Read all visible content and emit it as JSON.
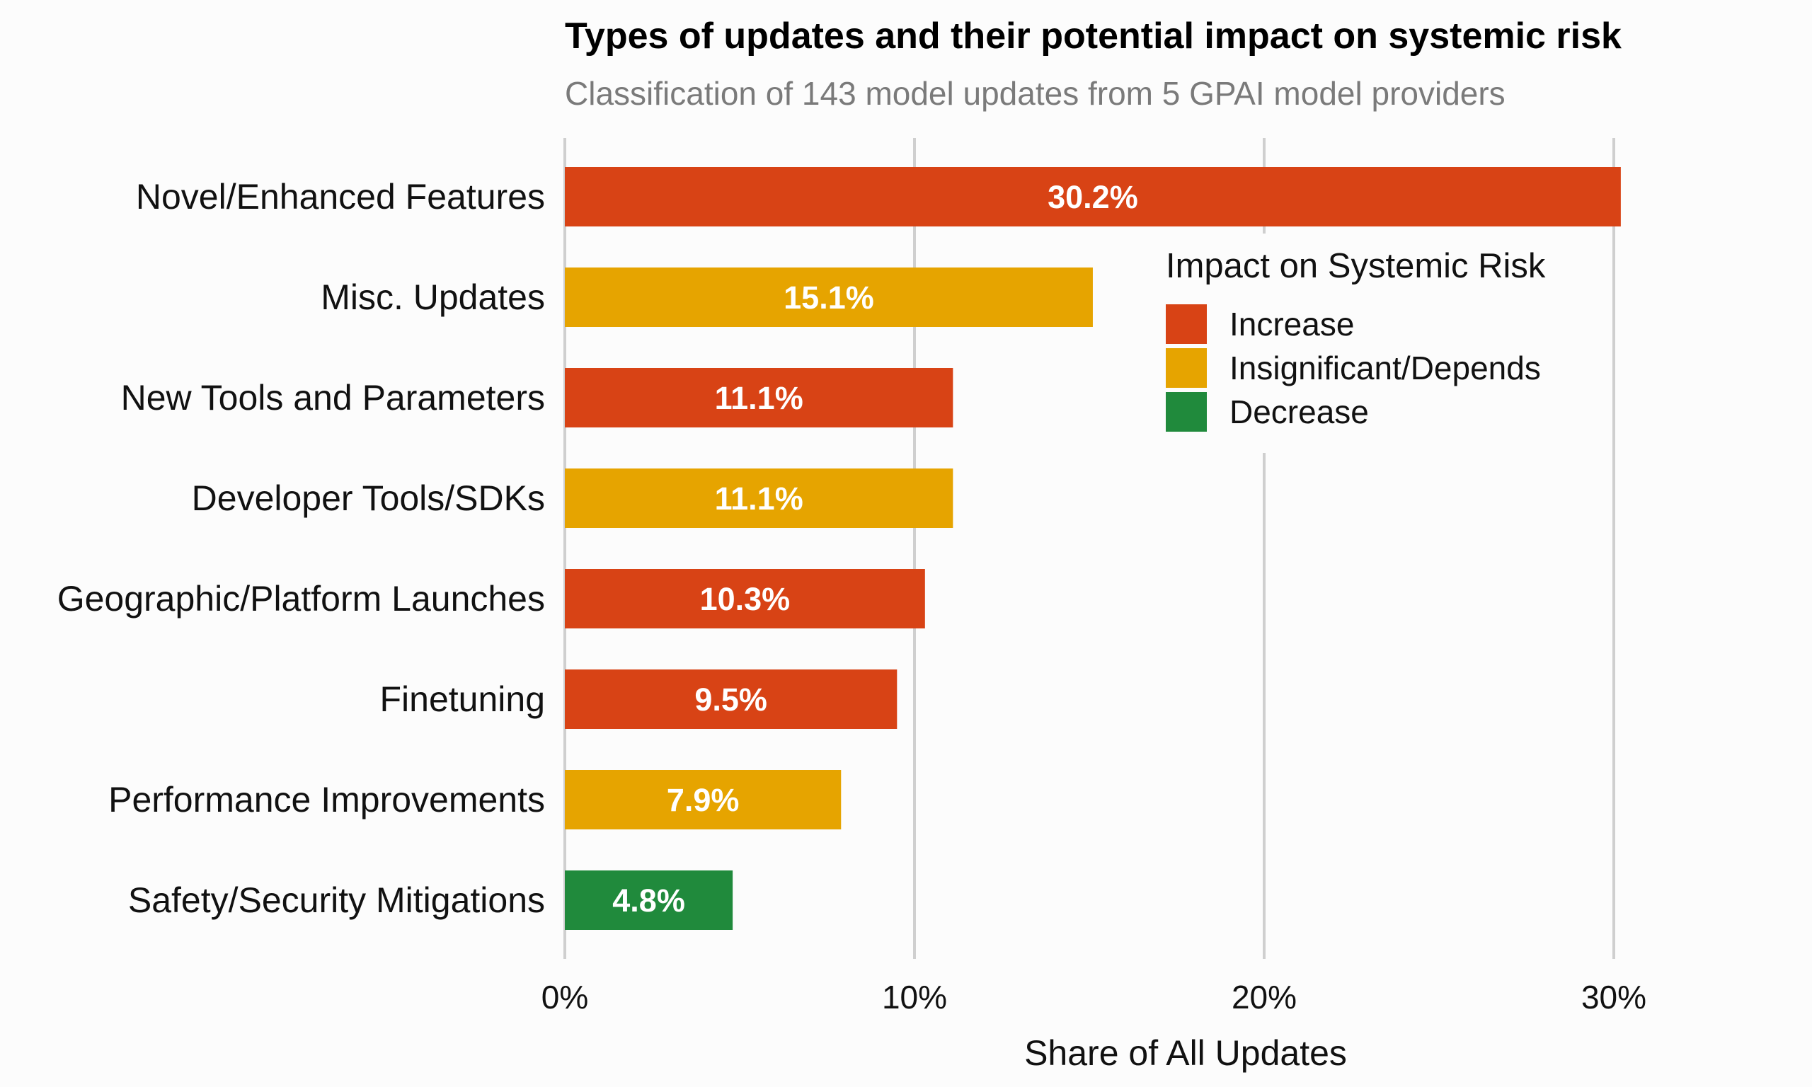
{
  "chart_data": {
    "type": "bar",
    "orientation": "horizontal",
    "title": "Types of updates and their potential impact on systemic risk",
    "subtitle": "Classification of 143 model updates from 5 GPAI model providers",
    "xlabel": "Share of All Updates",
    "ylabel": "",
    "xlim": [
      0,
      35
    ],
    "xticks": [
      0,
      10,
      20,
      30
    ],
    "xtick_labels": [
      "0%",
      "10%",
      "20%",
      "30%"
    ],
    "grid": "vertical major gridlines",
    "legend_position": "right",
    "legend": {
      "title": "Impact on Systemic Risk",
      "entries": [
        {
          "key": "increase",
          "label": "Increase",
          "color": "#d84315"
        },
        {
          "key": "insignificant",
          "label": "Insignificant/Depends",
          "color": "#e6a400"
        },
        {
          "key": "decrease",
          "label": "Decrease",
          "color": "#208a3c"
        }
      ]
    },
    "categories": [
      "Novel/Enhanced Features",
      "Misc. Updates",
      "New Tools and Parameters",
      "Developer Tools/SDKs",
      "Geographic/Platform Launches",
      "Finetuning",
      "Performance Improvements",
      "Safety/Security Mitigations"
    ],
    "values": [
      30.2,
      15.1,
      11.1,
      11.1,
      10.3,
      9.5,
      7.9,
      4.8
    ],
    "value_labels": [
      "30.2%",
      "15.1%",
      "11.1%",
      "11.1%",
      "10.3%",
      "9.5%",
      "7.9%",
      "4.8%"
    ],
    "impact": [
      "increase",
      "insignificant",
      "increase",
      "insignificant",
      "increase",
      "increase",
      "insignificant",
      "decrease"
    ]
  }
}
